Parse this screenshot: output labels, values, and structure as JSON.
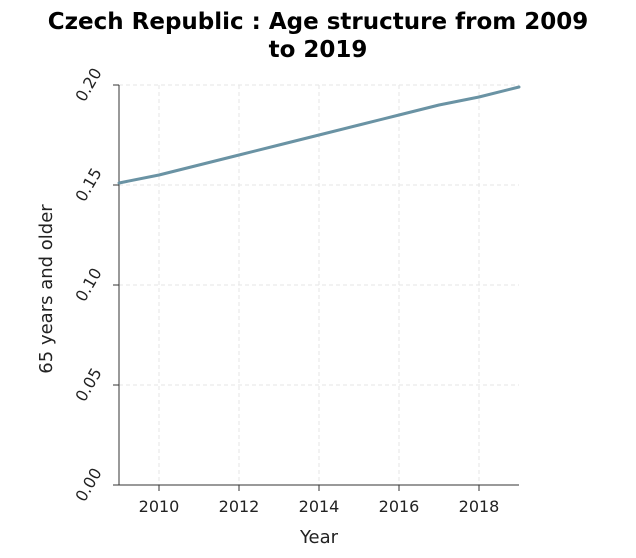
{
  "chart_data": {
    "type": "line",
    "title_line1": "Czech Republic : Age structure from 2009",
    "title_line2": "to 2019",
    "xlabel": "Year",
    "ylabel": "65 years and older",
    "xlim": [
      2009,
      2019
    ],
    "ylim": [
      0,
      0.2
    ],
    "x_ticks": [
      "2010",
      "2012",
      "2014",
      "2016",
      "2018"
    ],
    "y_ticks": [
      "0.00",
      "0.05",
      "0.10",
      "0.15",
      "0.20"
    ],
    "grid": true,
    "series_color": "#6a93a4",
    "x": [
      2009,
      2010,
      2011,
      2012,
      2013,
      2014,
      2015,
      2016,
      2017,
      2018,
      2019
    ],
    "values": [
      0.151,
      0.155,
      0.16,
      0.165,
      0.17,
      0.175,
      0.18,
      0.185,
      0.19,
      0.194,
      0.199
    ]
  }
}
